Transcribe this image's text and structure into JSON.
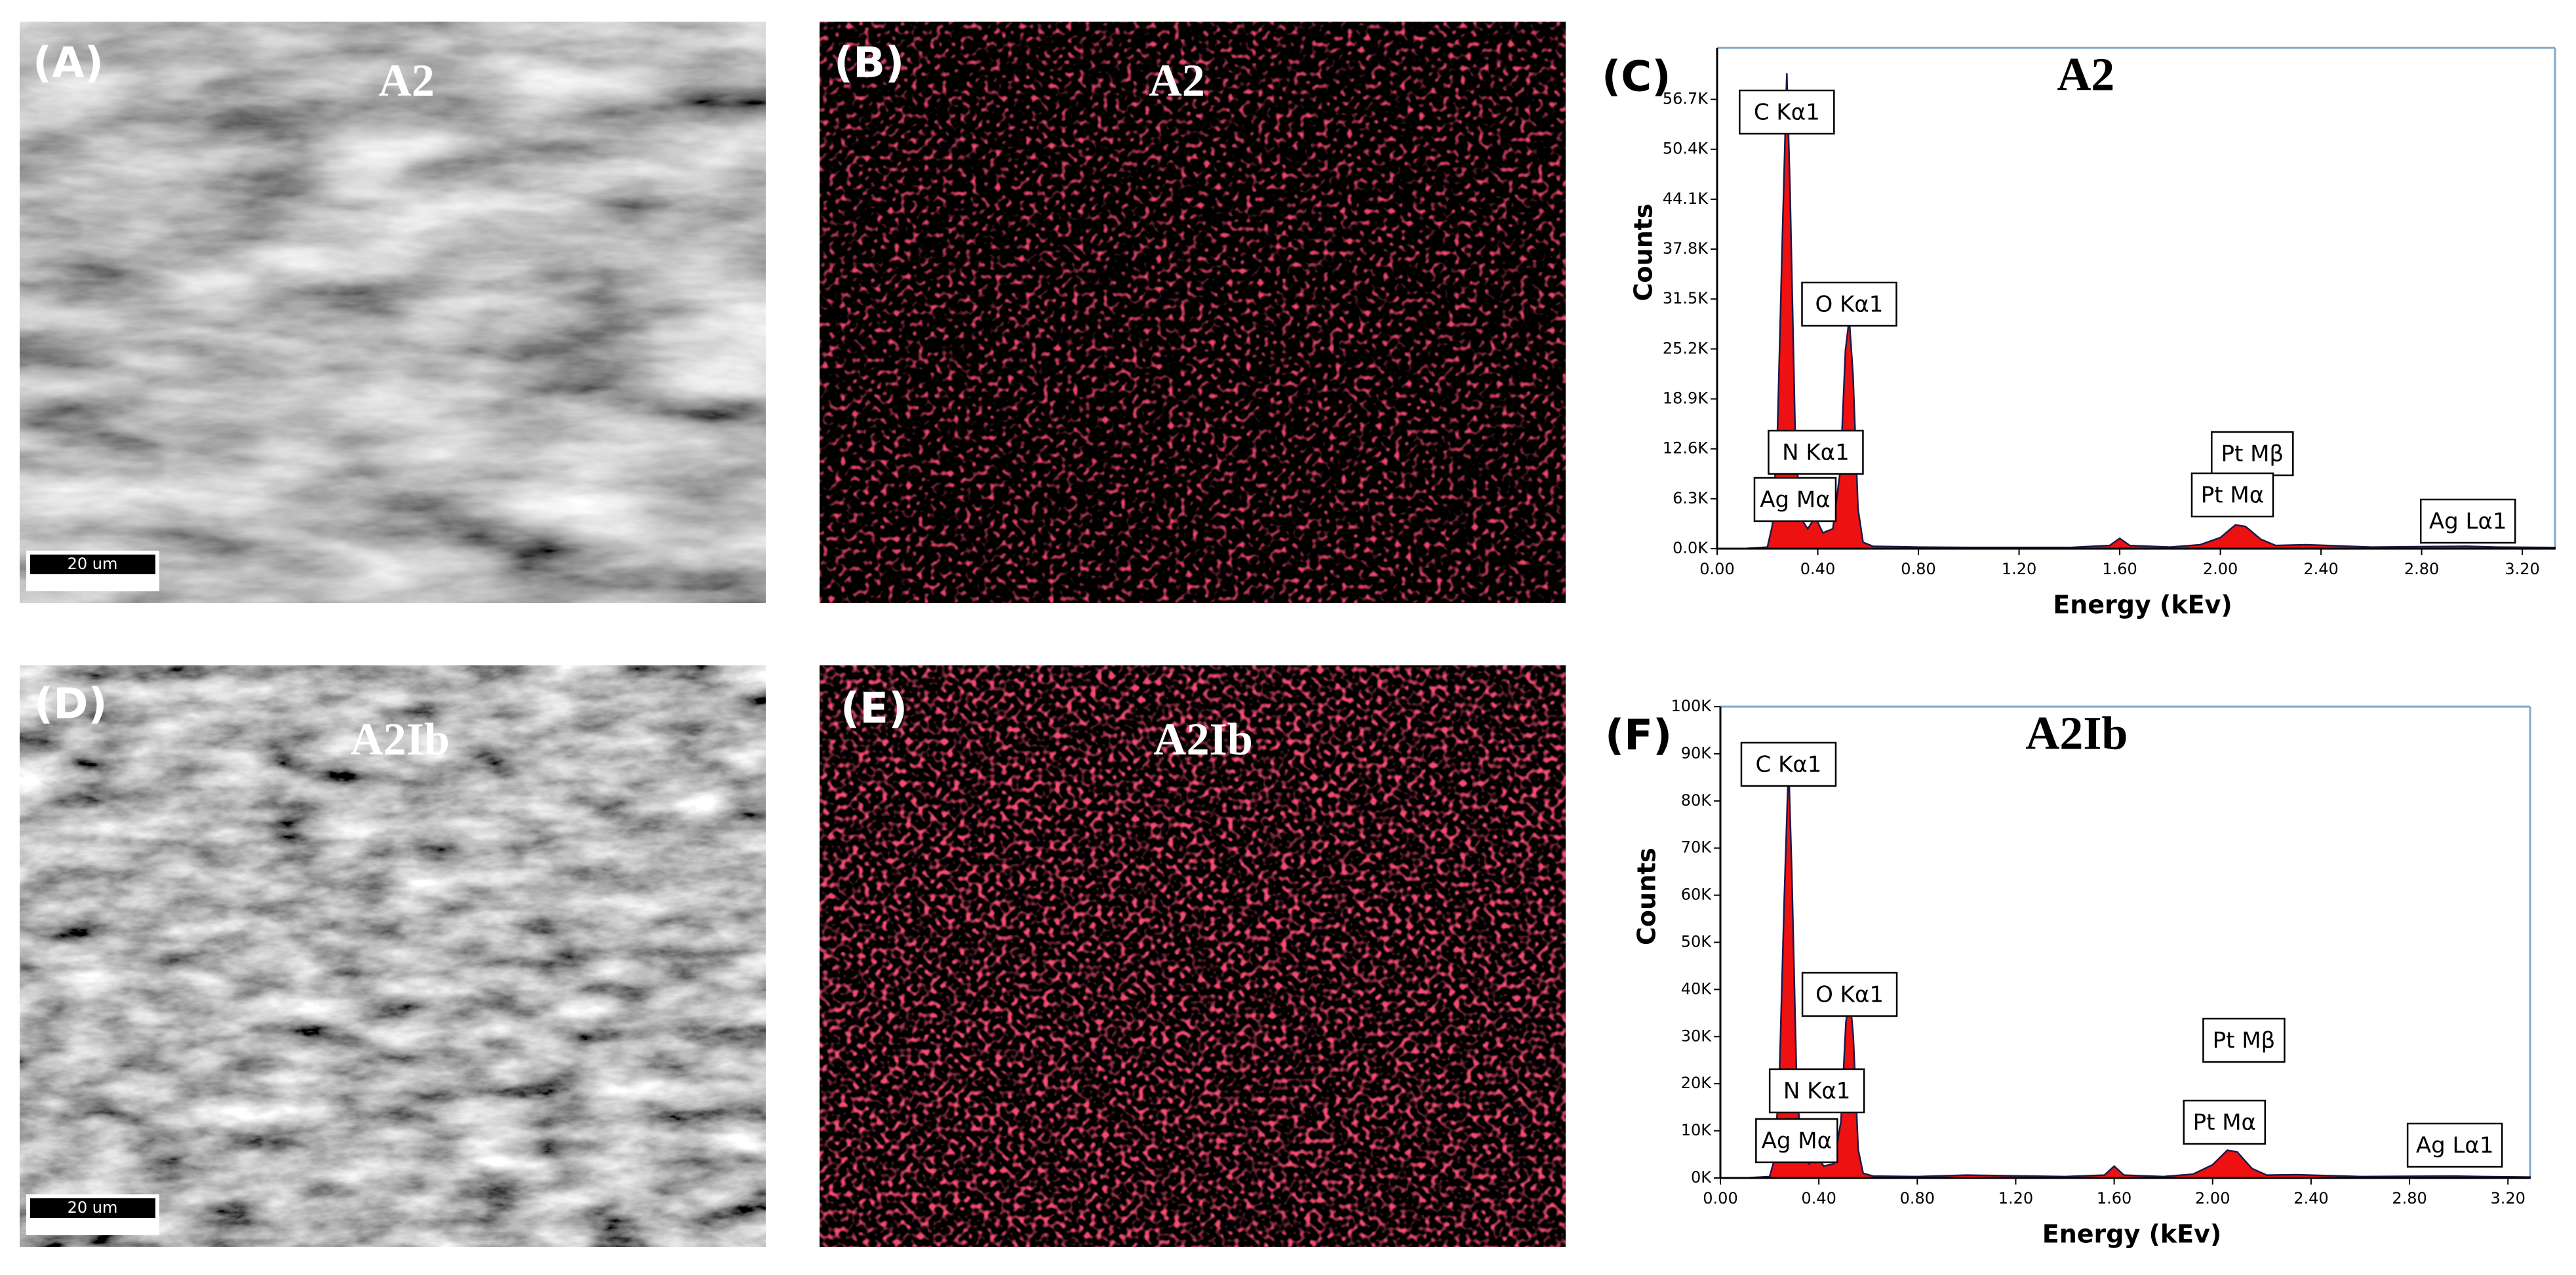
{
  "panels": [
    {
      "label": "(A)",
      "title": "A2",
      "scale_bar": "20 um"
    },
    {
      "label": "(B)",
      "title": "A2"
    },
    {
      "label": "(D)",
      "title": "A2Ib",
      "scale_bar": "20 um"
    },
    {
      "label": "(E)",
      "title": "A2Ib"
    }
  ],
  "chart_data": [
    {
      "type": "area",
      "label": "(C)",
      "title": "A2",
      "x_label": "Energy (kEv)",
      "y_label": "Counts",
      "x": [
        0,
        0.1,
        0.2,
        0.22,
        0.24,
        0.26,
        0.277,
        0.29,
        0.31,
        0.33,
        0.36,
        0.39,
        0.42,
        0.46,
        0.49,
        0.51,
        0.525,
        0.54,
        0.56,
        0.58,
        0.62,
        0.8,
        1.0,
        1.4,
        1.56,
        1.6,
        1.64,
        1.8,
        1.92,
        2.0,
        2.06,
        2.1,
        2.16,
        2.22,
        2.34,
        2.6,
        2.98,
        3.1,
        3.33
      ],
      "series": [
        {
          "color": "#ee1111",
          "values": [
            0,
            0,
            200,
            3000,
            15000,
            40000,
            60000,
            45000,
            15000,
            4000,
            2500,
            4000,
            2000,
            2500,
            10000,
            25000,
            29000,
            22000,
            5000,
            800,
            300,
            200,
            150,
            150,
            400,
            1300,
            400,
            200,
            500,
            1400,
            3000,
            2800,
            1200,
            400,
            500,
            200,
            300,
            200,
            150
          ]
        }
      ],
      "xlim": [
        0,
        3.33
      ],
      "ylim": [
        0,
        63200
      ],
      "xticks": [
        {
          "value": 0,
          "label": "0.00"
        },
        {
          "value": 0.4,
          "label": "0.40"
        },
        {
          "value": 0.8,
          "label": "0.80"
        },
        {
          "value": 1.2,
          "label": "1.20"
        },
        {
          "value": 1.6,
          "label": "1.60"
        },
        {
          "value": 2.0,
          "label": "2.00"
        },
        {
          "value": 2.4,
          "label": "2.40"
        },
        {
          "value": 2.8,
          "label": "2.80"
        },
        {
          "value": 3.2,
          "label": "3.20"
        }
      ],
      "yticks": [
        {
          "value": 0,
          "label": "0.0K"
        },
        {
          "value": 6300,
          "label": "6.3K"
        },
        {
          "value": 12600,
          "label": "12.6K"
        },
        {
          "value": 18900,
          "label": "18.9K"
        },
        {
          "value": 25200,
          "label": "25.2K"
        },
        {
          "value": 31500,
          "label": "31.5K"
        },
        {
          "value": 37800,
          "label": "37.8K"
        },
        {
          "value": 44100,
          "label": "44.1K"
        },
        {
          "value": 50400,
          "label": "50.4K"
        },
        {
          "value": 56700,
          "label": "56.7K"
        }
      ],
      "annotations": [
        {
          "text": "C  Kα1",
          "x": 0.277
        },
        {
          "text": "O  Kα1",
          "x": 0.525
        },
        {
          "text": "N  Kα1",
          "x": 0.392
        },
        {
          "text": "Ag Mα",
          "x": 0.31
        },
        {
          "text": "Pt Mβ",
          "x": 2.127
        },
        {
          "text": "Pt Mα",
          "x": 2.048
        },
        {
          "text": "Ag Lα1",
          "x": 2.984
        }
      ]
    },
    {
      "type": "area",
      "label": "(F)",
      "title": "A2Ib",
      "x_label": "Energy (kEv)",
      "y_label": "Counts",
      "x": [
        0,
        0.1,
        0.2,
        0.22,
        0.24,
        0.26,
        0.277,
        0.29,
        0.31,
        0.33,
        0.36,
        0.39,
        0.42,
        0.46,
        0.49,
        0.51,
        0.525,
        0.54,
        0.56,
        0.58,
        0.62,
        0.8,
        1.0,
        1.4,
        1.56,
        1.6,
        1.64,
        1.8,
        1.92,
        2.0,
        2.06,
        2.1,
        2.16,
        2.22,
        2.34,
        2.6,
        2.98,
        3.1,
        3.29
      ],
      "series": [
        {
          "color": "#ee1111",
          "values": [
            0,
            0,
            300,
            4000,
            22000,
            60000,
            88000,
            65000,
            20000,
            5000,
            3000,
            5000,
            2500,
            3000,
            12000,
            33000,
            39000,
            30000,
            6000,
            1000,
            400,
            300,
            600,
            300,
            600,
            2500,
            600,
            300,
            800,
            2800,
            5900,
            5500,
            2000,
            600,
            700,
            300,
            400,
            300,
            200
          ]
        }
      ],
      "xlim": [
        0,
        3.29
      ],
      "ylim": [
        0,
        100000
      ],
      "xticks": [
        {
          "value": 0,
          "label": "0.00"
        },
        {
          "value": 0.4,
          "label": "0.40"
        },
        {
          "value": 0.8,
          "label": "0.80"
        },
        {
          "value": 1.2,
          "label": "1.20"
        },
        {
          "value": 1.6,
          "label": "1.60"
        },
        {
          "value": 2.0,
          "label": "2.00"
        },
        {
          "value": 2.4,
          "label": "2.40"
        },
        {
          "value": 2.8,
          "label": "2.80"
        },
        {
          "value": 3.2,
          "label": "3.20"
        }
      ],
      "yticks": [
        {
          "value": 0,
          "label": "0K"
        },
        {
          "value": 10000,
          "label": "10K"
        },
        {
          "value": 20000,
          "label": "20K"
        },
        {
          "value": 30000,
          "label": "30K"
        },
        {
          "value": 40000,
          "label": "40K"
        },
        {
          "value": 50000,
          "label": "50K"
        },
        {
          "value": 60000,
          "label": "60K"
        },
        {
          "value": 70000,
          "label": "70K"
        },
        {
          "value": 80000,
          "label": "80K"
        },
        {
          "value": 90000,
          "label": "90K"
        },
        {
          "value": 100000,
          "label": "100K"
        }
      ],
      "annotations": [
        {
          "text": "C  Kα1",
          "x": 0.277
        },
        {
          "text": "O  Kα1",
          "x": 0.525
        },
        {
          "text": "N  Kα1",
          "x": 0.392
        },
        {
          "text": "Ag Mα",
          "x": 0.31
        },
        {
          "text": "Pt Mβ",
          "x": 2.127
        },
        {
          "text": "Pt Mα",
          "x": 2.048
        },
        {
          "text": "Ag Lα1",
          "x": 2.984
        }
      ]
    }
  ]
}
